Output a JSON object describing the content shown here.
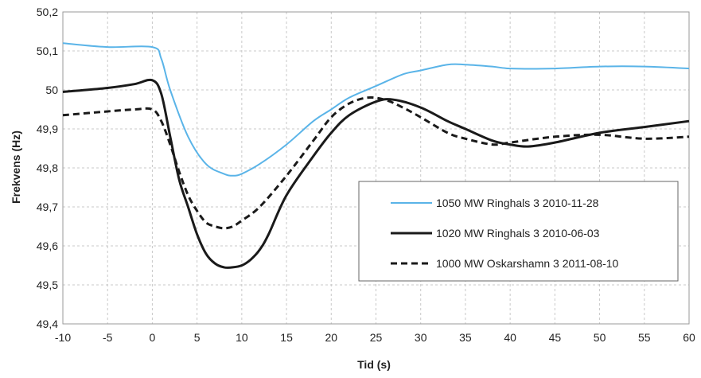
{
  "chart_data": {
    "type": "line",
    "title": "",
    "xlabel": "Tid (s)",
    "ylabel": "Frekvens (Hz)",
    "xlim": [
      -10,
      60
    ],
    "ylim": [
      49.4,
      50.2
    ],
    "xticks": [
      -10,
      -5,
      0,
      5,
      10,
      15,
      20,
      25,
      30,
      35,
      40,
      45,
      50,
      55,
      60
    ],
    "xtick_labels": [
      "-10",
      "-5",
      "0",
      "5",
      "10",
      "15",
      "20",
      "25",
      "30",
      "35",
      "40",
      "45",
      "50",
      "55",
      "60"
    ],
    "yticks": [
      49.4,
      49.5,
      49.6,
      49.7,
      49.8,
      49.9,
      50.0,
      50.1,
      50.2
    ],
    "ytick_labels": [
      "49,4",
      "49,5",
      "49,6",
      "49,7",
      "49,8",
      "49,9",
      "50",
      "50,1",
      "50,2"
    ],
    "grid": "dashed",
    "legend_position": "bottom-right (inside plot)",
    "series": [
      {
        "name": "1050 MW Ringhals 3 2010-11-28",
        "color": "#5ab4e8",
        "style": "solid",
        "x": [
          -10,
          -5,
          0,
          1,
          2,
          4,
          6,
          8,
          9,
          10,
          12,
          15,
          18,
          20,
          22,
          25,
          28,
          30,
          33,
          35,
          38,
          40,
          45,
          50,
          55,
          60
        ],
        "y": [
          50.12,
          50.11,
          50.11,
          50.08,
          50.0,
          49.88,
          49.81,
          49.785,
          49.78,
          49.785,
          49.81,
          49.86,
          49.92,
          49.95,
          49.98,
          50.01,
          50.04,
          50.05,
          50.065,
          50.065,
          50.06,
          50.055,
          50.055,
          50.06,
          50.06,
          50.055
        ]
      },
      {
        "name": "1020 MW Ringhals 3 2010-06-03",
        "color": "#1a1a1a",
        "style": "solid",
        "x": [
          -10,
          -5,
          -2,
          0,
          1,
          2,
          3,
          4,
          5,
          6,
          7,
          8,
          9,
          10,
          11,
          12,
          13,
          15,
          18,
          20,
          22,
          25,
          27,
          30,
          33,
          35,
          38,
          40,
          42,
          45,
          50,
          55,
          60
        ],
        "y": [
          49.995,
          50.005,
          50.015,
          50.025,
          49.99,
          49.88,
          49.77,
          49.7,
          49.63,
          49.58,
          49.555,
          49.545,
          49.545,
          49.55,
          49.565,
          49.59,
          49.63,
          49.73,
          49.83,
          49.89,
          49.935,
          49.97,
          49.975,
          49.955,
          49.92,
          49.9,
          49.87,
          49.86,
          49.855,
          49.865,
          49.89,
          49.905,
          49.92
        ]
      },
      {
        "name": "1000 MW Oskarshamn 3 2011-08-10",
        "color": "#1a1a1a",
        "style": "dashed",
        "x": [
          -10,
          -5,
          -2,
          0,
          1,
          2,
          3,
          4,
          5,
          6,
          7,
          8,
          9,
          10,
          12,
          15,
          18,
          20,
          22,
          24,
          26,
          28,
          30,
          33,
          35,
          38,
          40,
          45,
          50,
          55,
          60
        ],
        "y": [
          49.935,
          49.945,
          49.95,
          49.95,
          49.92,
          49.86,
          49.79,
          49.73,
          49.69,
          49.66,
          49.65,
          49.645,
          49.65,
          49.665,
          49.7,
          49.78,
          49.87,
          49.93,
          49.965,
          49.98,
          49.975,
          49.955,
          49.93,
          49.89,
          49.875,
          49.86,
          49.865,
          49.88,
          49.885,
          49.875,
          49.88
        ]
      }
    ]
  }
}
